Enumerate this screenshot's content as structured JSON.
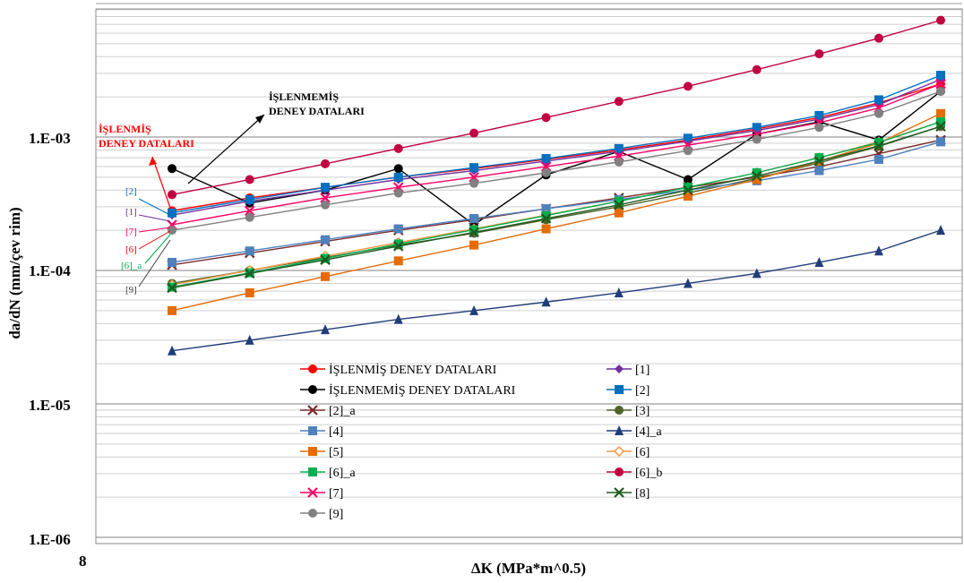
{
  "chart_data": {
    "type": "line",
    "title": "",
    "xlabel": "ΔK (MPa*m^0.5)",
    "ylabel": "da/dN (mm/çev rim)",
    "yscale": "log",
    "ylim": [
      1e-06,
      0.01
    ],
    "y_ticks": [
      "1.E-06",
      "1.E-05",
      "1.E-04",
      "1.E-03"
    ],
    "x_ticks": [
      "8"
    ],
    "grid": "horizontal minor and major",
    "legend_placement": "lower-center",
    "x": [
      8.9,
      10.0,
      11.2,
      12.5,
      14.0,
      15.6,
      17.4,
      19.3,
      21.4,
      23.5,
      25.7,
      28.2
    ],
    "series": [
      {
        "name": "İŞLENMİŞ DENEY DATALARI",
        "color": "#ff0000",
        "marker": "circle",
        "values": [
          0.00028,
          0.00035,
          0.00042,
          0.0005,
          0.00058,
          0.00068,
          0.0008,
          0.00095,
          0.00115,
          0.0014,
          0.0018,
          0.0025
        ]
      },
      {
        "name": "İŞLENMEMİŞ DENEY DATALARI",
        "color": "#000000",
        "marker": "circle",
        "values": [
          0.00058,
          0.00032,
          0.0004,
          0.00058,
          0.00022,
          0.00052,
          0.00078,
          0.00048,
          0.00105,
          0.0013,
          0.00095,
          0.0022
        ]
      },
      {
        "name": "[1]",
        "color": "#7030a0",
        "marker": "diamond",
        "values": [
          0.00026,
          0.00033,
          0.0004,
          0.00048,
          0.00056,
          0.00066,
          0.00078,
          0.00093,
          0.00112,
          0.00136,
          0.00175,
          0.0027
        ]
      },
      {
        "name": "[2]",
        "color": "#0070c0",
        "marker": "square",
        "values": [
          0.00027,
          0.00034,
          0.00042,
          0.0005,
          0.00059,
          0.00069,
          0.00082,
          0.00098,
          0.00118,
          0.00145,
          0.0019,
          0.0029
        ]
      },
      {
        "name": "[2]_a",
        "color": "#7b2a2a",
        "marker": "x",
        "values": [
          0.00011,
          0.000135,
          0.000165,
          0.0002,
          0.00024,
          0.00029,
          0.00035,
          0.00042,
          0.0005,
          0.0006,
          0.00075,
          0.00095
        ]
      },
      {
        "name": "[3]",
        "color": "#4f6228",
        "marker": "circle",
        "values": [
          8e-05,
          0.0001,
          0.000125,
          0.000155,
          0.00019,
          0.00024,
          0.0003,
          0.00038,
          0.00049,
          0.00064,
          0.00085,
          0.0012
        ]
      },
      {
        "name": "[4]",
        "color": "#4f81bd",
        "marker": "square",
        "values": [
          0.000115,
          0.00014,
          0.00017,
          0.000205,
          0.000245,
          0.00029,
          0.00034,
          0.0004,
          0.00047,
          0.00056,
          0.00068,
          0.00092
        ]
      },
      {
        "name": "[4]_a",
        "color": "#1f3d7a",
        "marker": "triangle",
        "values": [
          2.5e-05,
          3e-05,
          3.6e-05,
          4.3e-05,
          5e-05,
          5.8e-05,
          6.8e-05,
          8e-05,
          9.5e-05,
          0.000115,
          0.00014,
          0.0002
        ]
      },
      {
        "name": "[5]",
        "color": "#e36c09",
        "marker": "square",
        "values": [
          5e-05,
          6.8e-05,
          9e-05,
          0.000118,
          0.000155,
          0.000205,
          0.00027,
          0.00036,
          0.00048,
          0.00066,
          0.0009,
          0.0015
        ]
      },
      {
        "name": "[6]",
        "color": "#f79646",
        "marker": "diamond-open",
        "values": [
          7.8e-05,
          0.0001,
          0.000128,
          0.000162,
          0.000205,
          0.00026,
          0.00033,
          0.00042,
          0.00054,
          0.0007,
          0.00092,
          0.0013
        ]
      },
      {
        "name": "[6]_a",
        "color": "#00b050",
        "marker": "square",
        "values": [
          7.5e-05,
          9.6e-05,
          0.000123,
          0.000158,
          0.000202,
          0.000258,
          0.00033,
          0.00042,
          0.00054,
          0.0007,
          0.00091,
          0.0013
        ]
      },
      {
        "name": "[6]_b",
        "color": "#c00040",
        "marker": "circle",
        "values": [
          0.00037,
          0.00048,
          0.00063,
          0.00082,
          0.00107,
          0.0014,
          0.00185,
          0.0024,
          0.0032,
          0.0042,
          0.0055,
          0.0075
        ]
      },
      {
        "name": "[7]",
        "color": "#ff0066",
        "marker": "x",
        "values": [
          0.00022,
          0.00028,
          0.00035,
          0.00042,
          0.0005,
          0.0006,
          0.00072,
          0.00087,
          0.00105,
          0.00128,
          0.00165,
          0.0025
        ]
      },
      {
        "name": "[8]",
        "color": "#1e5a1e",
        "marker": "x",
        "values": [
          7.4e-05,
          9.5e-05,
          0.00012,
          0.000152,
          0.000193,
          0.000245,
          0.00031,
          0.0004,
          0.00051,
          0.00066,
          0.00086,
          0.0012
        ]
      },
      {
        "name": "[9]",
        "color": "#808080",
        "marker": "circle",
        "values": [
          0.0002,
          0.00025,
          0.00031,
          0.00038,
          0.00045,
          0.00054,
          0.00065,
          0.00079,
          0.00096,
          0.00118,
          0.0015,
          0.0022
        ]
      }
    ],
    "annotations": [
      {
        "text_line1": "İŞLENMİŞ",
        "text_line2": "DENEY DATALARI",
        "color": "#ff0000"
      },
      {
        "text_line1": "İŞLENMEMİŞ",
        "text_line2": "DENEY DATALARI",
        "color": "#000000"
      }
    ],
    "side_labels": [
      {
        "text": "[2]",
        "color": "#0070c0"
      },
      {
        "text": "[1]",
        "color": "#7030a0"
      },
      {
        "text": "[7]",
        "color": "#ff0066"
      },
      {
        "text": "[6]",
        "color": "#ff0000"
      },
      {
        "text": "[6]_a",
        "color": "#00b050"
      },
      {
        "text": "[9]",
        "color": "#404040"
      }
    ]
  }
}
